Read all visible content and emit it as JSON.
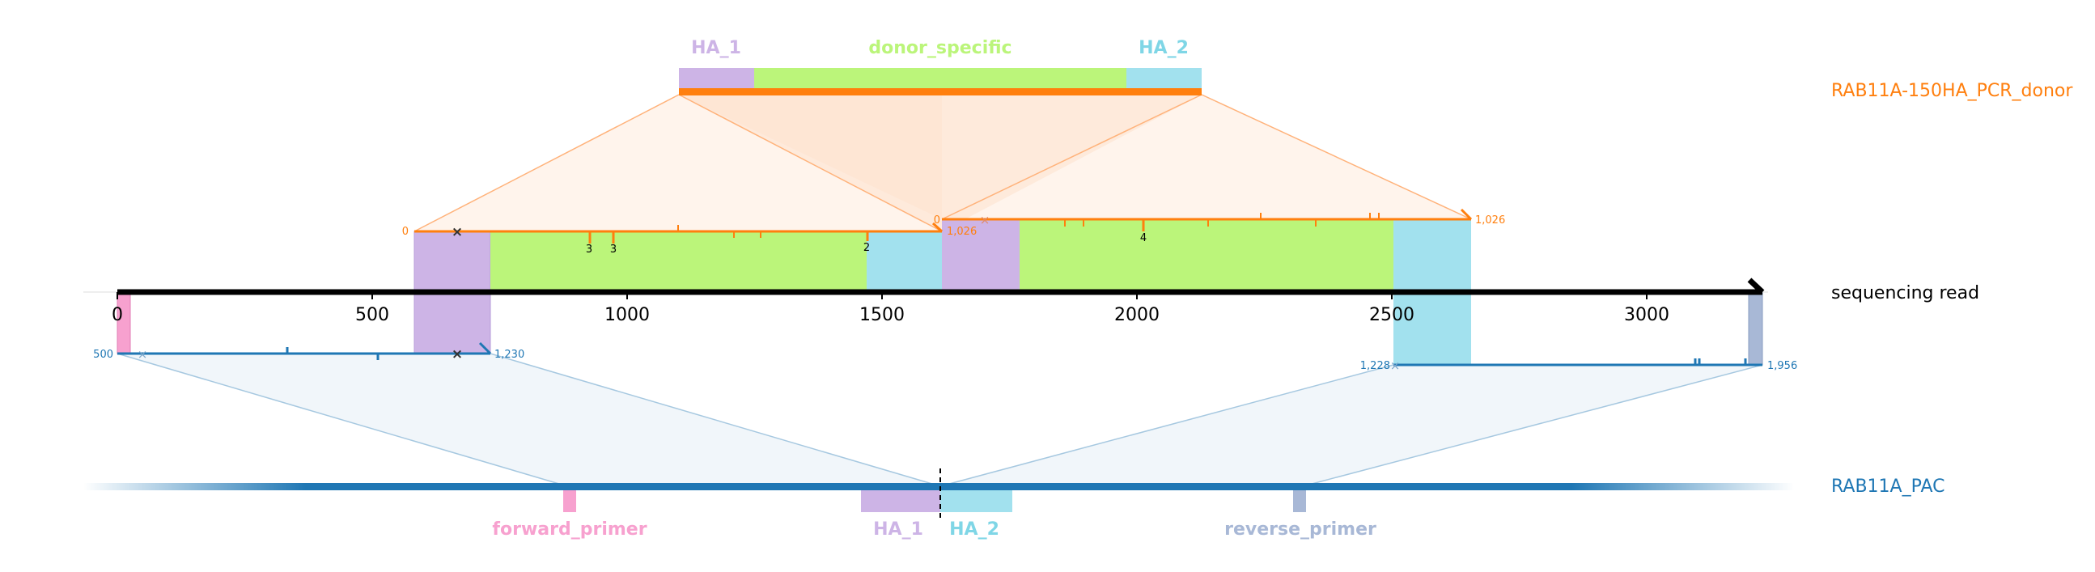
{
  "donor": {
    "name": "RAB11A-150HA_PCR_donor",
    "features": [
      {
        "name": "HA_1",
        "start": 0,
        "end": 150,
        "color": "#cdb4e6"
      },
      {
        "name": "donor_specific",
        "start": 150,
        "end": 876,
        "color": "#bbf57a"
      },
      {
        "name": "HA_2",
        "start": 876,
        "end": 1026,
        "color": "#a2e1ee"
      }
    ],
    "color": "#ff7f0e"
  },
  "read": {
    "name": "sequencing read",
    "ticks": [
      "0",
      "500",
      "1000",
      "1500",
      "2000",
      "2500",
      "3000"
    ],
    "tick_values": [
      0,
      500,
      1000,
      1500,
      2000,
      2500,
      3000
    ],
    "length": 3230
  },
  "alignments": {
    "donor_1": {
      "start_label": "0",
      "end_label": "1,026",
      "indel_labels": [
        "3",
        "3",
        "2"
      ]
    },
    "donor_2": {
      "start_label": "0",
      "end_label": "1,026",
      "indel_labels": [
        "4"
      ]
    },
    "pac_1": {
      "start_label": "500",
      "end_label": "1,230"
    },
    "pac_2": {
      "start_label": "1,228",
      "end_label": "1,956"
    }
  },
  "reference": {
    "name": "RAB11A_PAC",
    "color": "#1f77b4",
    "features": [
      {
        "name": "forward_primer",
        "color": "#f7a1cf"
      },
      {
        "name": "HA_1",
        "color": "#cdb4e6"
      },
      {
        "name": "HA_2",
        "color": "#a2e1ee"
      },
      {
        "name": "reverse_primer",
        "color": "#a8b8d6"
      }
    ]
  },
  "colors": {
    "donor": "#ff7f0e",
    "reference": "#1f77b4",
    "read": "#000000",
    "forward_primer": "#f7a1cf",
    "reverse_primer": "#a8b8d6",
    "HA_1": "#cdb4e6",
    "HA_2": "#a2e1ee",
    "donor_specific": "#bbf57a"
  }
}
